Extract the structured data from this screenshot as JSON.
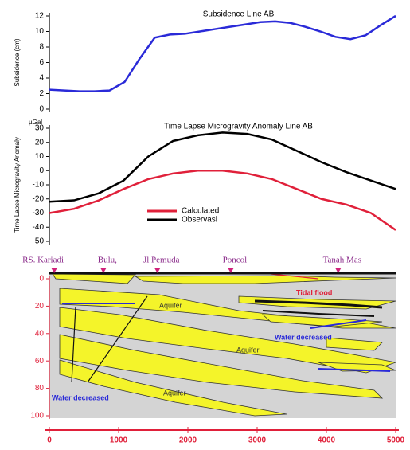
{
  "chart_data": [
    {
      "type": "line",
      "title": "Subsidence  Line AB",
      "y_label": "Subsidence (cm)",
      "ylim": [
        0,
        12
      ],
      "yticks": [
        0,
        2,
        4,
        6,
        8,
        10,
        12
      ],
      "series": [
        {
          "color": "#2a2ad8",
          "values": [
            2.5,
            2.4,
            2.3,
            2.3,
            2.4,
            3.5,
            6.5,
            9.2,
            9.6,
            9.7,
            10.0,
            10.3,
            10.6,
            10.9,
            11.2,
            11.3,
            11.1,
            10.6,
            10.0,
            9.3,
            9.0,
            9.5,
            10.8,
            12.0
          ]
        }
      ]
    },
    {
      "type": "line",
      "title": "Time Lapse Microgravity Anomaly Line AB",
      "y_label": "Time Lapse Microgravity Anomaly",
      "unit": "µGal",
      "ylim": [
        -50,
        30
      ],
      "yticks": [
        30,
        20,
        10,
        0,
        -10,
        -20,
        -30,
        -40,
        -50
      ],
      "series": [
        {
          "name": "Calculated",
          "color": "#e0203a",
          "values": [
            -30,
            -27,
            -21,
            -13,
            -6,
            -2,
            0,
            0,
            -2,
            -6,
            -13,
            -20,
            -24,
            -30,
            -42
          ]
        },
        {
          "name": "Observasi",
          "color": "#000000",
          "values": [
            -22,
            -21,
            -16,
            -7,
            10,
            21,
            25,
            27,
            26,
            22,
            14,
            6,
            -1,
            -7,
            -13
          ]
        }
      ]
    },
    {
      "type": "section",
      "xlim": [
        0,
        5000
      ],
      "xticks": [
        0,
        1000,
        2000,
        3000,
        4000,
        5000
      ],
      "ylim": [
        0,
        100
      ],
      "yticks": [
        0,
        20,
        40,
        60,
        80,
        100
      ],
      "locations": [
        {
          "label": "RS. Kariadi",
          "x": 70
        },
        {
          "label": "Bulu,",
          "x": 780
        },
        {
          "label": "Jl  Pemuda",
          "x": 1560
        },
        {
          "label": "Poncol",
          "x": 2620
        },
        {
          "label": "Tanah Mas",
          "x": 4170
        }
      ],
      "annotations": [
        "Tidal flood",
        "Aquifer",
        "Aquifer",
        "Aquifer",
        "Water decreased",
        "Water decreased"
      ]
    }
  ]
}
